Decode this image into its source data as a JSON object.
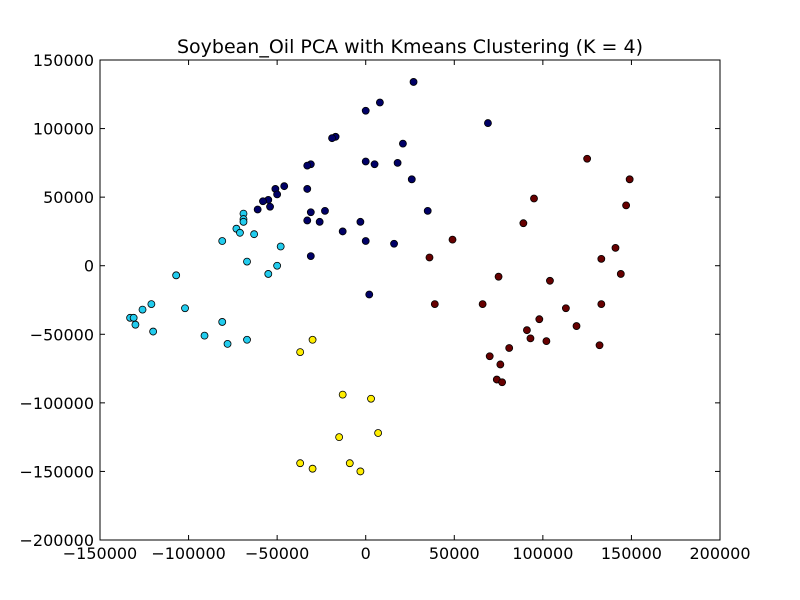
{
  "chart_data": {
    "type": "scatter",
    "title": "Soybean_Oil PCA with Kmeans Clustering (K = 4)",
    "xlabel": "",
    "ylabel": "",
    "xlim": [
      -150000,
      200000
    ],
    "ylim": [
      -200000,
      150000
    ],
    "x_ticks": [
      -150000,
      -100000,
      -50000,
      0,
      50000,
      100000,
      150000,
      200000
    ],
    "y_ticks": [
      -200000,
      -150000,
      -100000,
      -50000,
      0,
      50000,
      100000,
      150000
    ],
    "x_tick_labels": [
      "−150000",
      "−100000",
      "−50000",
      "0",
      "50000",
      "100000",
      "150000",
      "200000"
    ],
    "y_tick_labels": [
      "−200000",
      "−150000",
      "−100000",
      "−50000",
      "0",
      "50000",
      "100000",
      "150000"
    ],
    "grid": false,
    "series": [
      {
        "color": "#000066",
        "points": [
          [
            27000,
            134000
          ],
          [
            8000,
            119000
          ],
          [
            0,
            113000
          ],
          [
            69000,
            104000
          ],
          [
            21000,
            89000
          ],
          [
            -17000,
            94000
          ],
          [
            -19000,
            93000
          ],
          [
            -31000,
            74000
          ],
          [
            -33000,
            73000
          ],
          [
            0,
            76000
          ],
          [
            5000,
            74000
          ],
          [
            18000,
            75000
          ],
          [
            26000,
            63000
          ],
          [
            -46000,
            58000
          ],
          [
            -51000,
            56000
          ],
          [
            -33000,
            56000
          ],
          [
            -50000,
            52000
          ],
          [
            -55000,
            48000
          ],
          [
            -58000,
            47000
          ],
          [
            -54000,
            43000
          ],
          [
            -61000,
            41000
          ],
          [
            -31000,
            39000
          ],
          [
            -23000,
            40000
          ],
          [
            -33000,
            33000
          ],
          [
            -26000,
            32000
          ],
          [
            -3000,
            32000
          ],
          [
            35000,
            40000
          ],
          [
            -13000,
            25000
          ],
          [
            0,
            18000
          ],
          [
            16000,
            16000
          ],
          [
            -31000,
            7000
          ],
          [
            2000,
            -21000
          ]
        ]
      },
      {
        "color": "#22ccee",
        "points": [
          [
            -69000,
            38000
          ],
          [
            -69000,
            34000
          ],
          [
            -69000,
            32000
          ],
          [
            -73000,
            27000
          ],
          [
            -71000,
            24000
          ],
          [
            -63000,
            23000
          ],
          [
            -81000,
            18000
          ],
          [
            -48000,
            14000
          ],
          [
            -67000,
            3000
          ],
          [
            -50000,
            0
          ],
          [
            -55000,
            -6000
          ],
          [
            -107000,
            -7000
          ],
          [
            -121000,
            -28000
          ],
          [
            -102000,
            -31000
          ],
          [
            -126000,
            -32000
          ],
          [
            -133000,
            -38000
          ],
          [
            -131000,
            -38000
          ],
          [
            -130000,
            -43000
          ],
          [
            -81000,
            -41000
          ],
          [
            -120000,
            -48000
          ],
          [
            -91000,
            -51000
          ],
          [
            -67000,
            -54000
          ],
          [
            -78000,
            -57000
          ]
        ]
      },
      {
        "color": "#660000",
        "points": [
          [
            125000,
            78000
          ],
          [
            149000,
            63000
          ],
          [
            95000,
            49000
          ],
          [
            147000,
            44000
          ],
          [
            89000,
            31000
          ],
          [
            49000,
            19000
          ],
          [
            141000,
            13000
          ],
          [
            36000,
            6000
          ],
          [
            133000,
            5000
          ],
          [
            144000,
            -6000
          ],
          [
            75000,
            -8000
          ],
          [
            104000,
            -11000
          ],
          [
            39000,
            -28000
          ],
          [
            66000,
            -28000
          ],
          [
            133000,
            -28000
          ],
          [
            113000,
            -31000
          ],
          [
            98000,
            -39000
          ],
          [
            119000,
            -44000
          ],
          [
            91000,
            -47000
          ],
          [
            93000,
            -53000
          ],
          [
            102000,
            -55000
          ],
          [
            132000,
            -58000
          ],
          [
            81000,
            -60000
          ],
          [
            70000,
            -66000
          ],
          [
            76000,
            -72000
          ],
          [
            74000,
            -83000
          ],
          [
            77000,
            -85000
          ]
        ]
      },
      {
        "color": "#ffee00",
        "points": [
          [
            -30000,
            -54000
          ],
          [
            -37000,
            -63000
          ],
          [
            -13000,
            -94000
          ],
          [
            3000,
            -97000
          ],
          [
            7000,
            -122000
          ],
          [
            -15000,
            -125000
          ],
          [
            -37000,
            -144000
          ],
          [
            -9000,
            -144000
          ],
          [
            -30000,
            -148000
          ],
          [
            -3000,
            -150000
          ]
        ]
      }
    ]
  }
}
